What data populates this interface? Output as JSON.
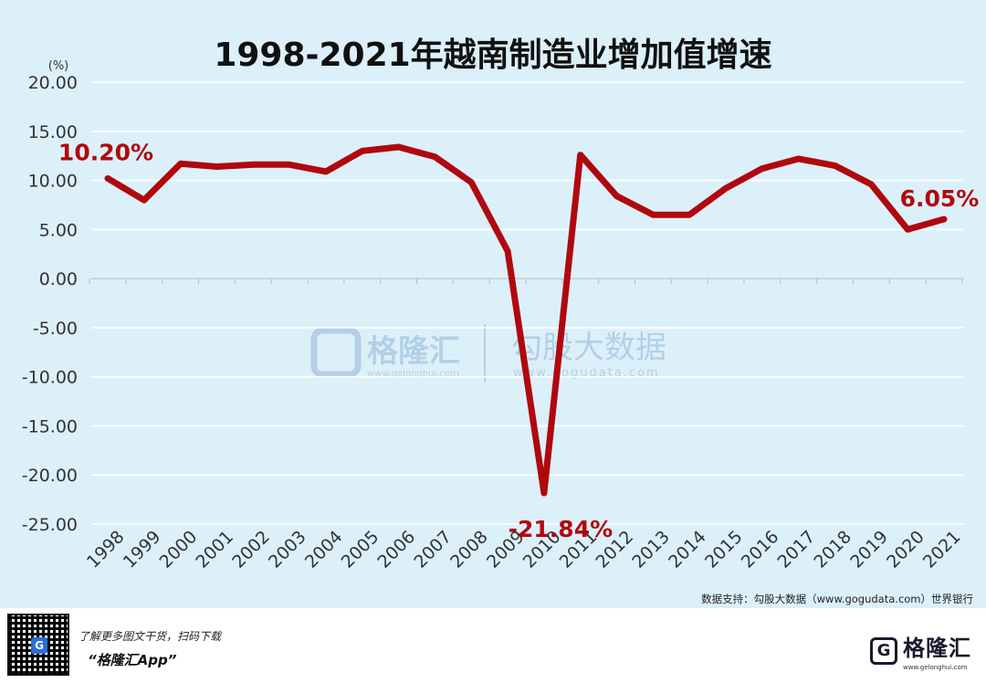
{
  "chart_data": {
    "type": "line",
    "title": "1998-2021年越南制造业增加值增速",
    "y_unit": "(%)",
    "ylim": [
      -25,
      20
    ],
    "y_ticks": [
      "20.00",
      "15.00",
      "10.00",
      "5.00",
      "0.00",
      "-5.00",
      "-10.00",
      "-15.00",
      "-20.00",
      "-25.00"
    ],
    "y_tick_values": [
      20,
      15,
      10,
      5,
      0,
      -5,
      -10,
      -15,
      -20,
      -25
    ],
    "categories": [
      "1998",
      "1999",
      "2000",
      "2001",
      "2002",
      "2003",
      "2004",
      "2005",
      "2006",
      "2007",
      "2008",
      "2009",
      "2010",
      "2011",
      "2012",
      "2013",
      "2014",
      "2015",
      "2016",
      "2017",
      "2018",
      "2019",
      "2020",
      "2021"
    ],
    "series": [
      {
        "values": [
          10.2,
          8.0,
          11.7,
          11.4,
          11.6,
          11.6,
          10.9,
          13.0,
          13.4,
          12.4,
          9.8,
          2.8,
          -21.84,
          12.6,
          8.4,
          6.5,
          6.5,
          9.2,
          11.2,
          12.2,
          11.5,
          9.6,
          5.0,
          6.05
        ],
        "color": "#b0080e"
      }
    ],
    "annotations": [
      {
        "index": 0,
        "text": "10.20%"
      },
      {
        "index": 12,
        "text": "-21.84%"
      },
      {
        "index": 23,
        "text": "6.05%"
      }
    ],
    "grid": true,
    "source": "数据支持：勾股大数据（www.gogudata.com）世界银行"
  },
  "watermark": {
    "brand_cn": "格隆汇",
    "brand_url": "www.gelonghui.com",
    "partner_cn": "勾股大数据",
    "partner_url": "www.gogudata.com"
  },
  "footer": {
    "line1": "了解更多图文干货，扫码下载",
    "line2": "“格隆汇App”",
    "logo_text": "格隆汇",
    "logo_sub": "www.gelonghui.com",
    "qr_mark": "G",
    "logo_mark": "G"
  }
}
